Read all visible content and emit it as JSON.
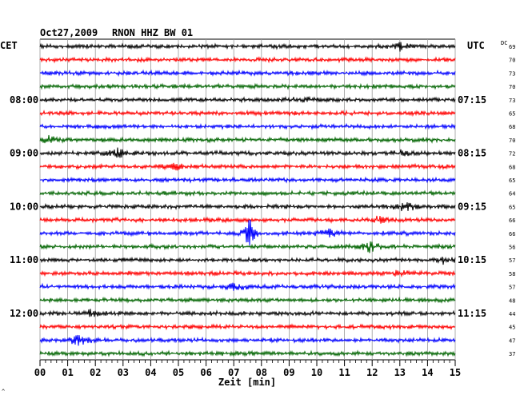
{
  "header": {
    "date": "Oct27,2009",
    "station": "RNON HHZ BW 01",
    "left_zone": "CET",
    "right_zone": "UTC",
    "dc_label": "DC"
  },
  "chart_data": {
    "type": "line",
    "title": "Oct27,2009   RNON HHZ BW 01",
    "xlabel": "Zeit [min]",
    "xlim": [
      0,
      15
    ],
    "x_ticks": [
      "00",
      "01",
      "02",
      "03",
      "04",
      "05",
      "06",
      "07",
      "08",
      "09",
      "10",
      "11",
      "12",
      "13",
      "14",
      "15"
    ],
    "traces_per_hour": 4,
    "minutes_per_trace": 15,
    "trace_colors": [
      "#000000",
      "#ff0000",
      "#0000ff",
      "#006400"
    ],
    "left_hour_labels": [
      "08:00",
      "09:00",
      "10:00",
      "11:00",
      "12:00"
    ],
    "right_hour_labels": [
      "07:15",
      "08:15",
      "09:15",
      "10:15",
      "11:15"
    ],
    "dc_offsets": [
      69,
      70,
      73,
      70,
      73,
      65,
      68,
      70,
      72,
      68,
      65,
      64,
      65,
      66,
      66,
      56,
      57,
      58,
      57,
      48,
      44,
      45,
      47,
      37
    ],
    "traces": [
      {
        "amp": 3,
        "events": [
          {
            "x": 13.0,
            "amp": 4
          }
        ]
      },
      {
        "amp": 3,
        "events": []
      },
      {
        "amp": 3,
        "events": []
      },
      {
        "amp": 3,
        "events": []
      },
      {
        "amp": 3,
        "events": [
          {
            "x": 9.5,
            "amp": 3
          }
        ]
      },
      {
        "amp": 3,
        "events": []
      },
      {
        "amp": 3,
        "events": []
      },
      {
        "amp": 3,
        "events": [
          {
            "x": 0.3,
            "amp": 5
          }
        ]
      },
      {
        "amp": 3,
        "events": [
          {
            "x": 2.8,
            "amp": 7
          },
          {
            "x": 13.0,
            "amp": 3
          }
        ]
      },
      {
        "amp": 3,
        "events": [
          {
            "x": 4.9,
            "amp": 4
          }
        ]
      },
      {
        "amp": 3,
        "events": []
      },
      {
        "amp": 3,
        "events": []
      },
      {
        "amp": 3,
        "events": [
          {
            "x": 13.2,
            "amp": 6
          }
        ]
      },
      {
        "amp": 3,
        "events": [
          {
            "x": 12.2,
            "amp": 4
          }
        ]
      },
      {
        "amp": 3,
        "events": [
          {
            "x": 7.6,
            "amp": 30
          },
          {
            "x": 10.4,
            "amp": 5
          }
        ]
      },
      {
        "amp": 3,
        "events": [
          {
            "x": 11.9,
            "amp": 6
          }
        ]
      },
      {
        "amp": 3,
        "events": [
          {
            "x": 14.6,
            "amp": 4
          }
        ]
      },
      {
        "amp": 3,
        "events": [
          {
            "x": 13.0,
            "amp": 3
          }
        ]
      },
      {
        "amp": 3,
        "events": [
          {
            "x": 7.0,
            "amp": 4
          }
        ]
      },
      {
        "amp": 3,
        "events": []
      },
      {
        "amp": 3,
        "events": [
          {
            "x": 1.8,
            "amp": 4
          }
        ]
      },
      {
        "amp": 3,
        "events": []
      },
      {
        "amp": 3,
        "events": [
          {
            "x": 1.4,
            "amp": 6
          }
        ]
      },
      {
        "amp": 3,
        "events": []
      }
    ],
    "vertical_grid": true,
    "legend": "none"
  },
  "footer": {
    "corner_mark": "^"
  }
}
